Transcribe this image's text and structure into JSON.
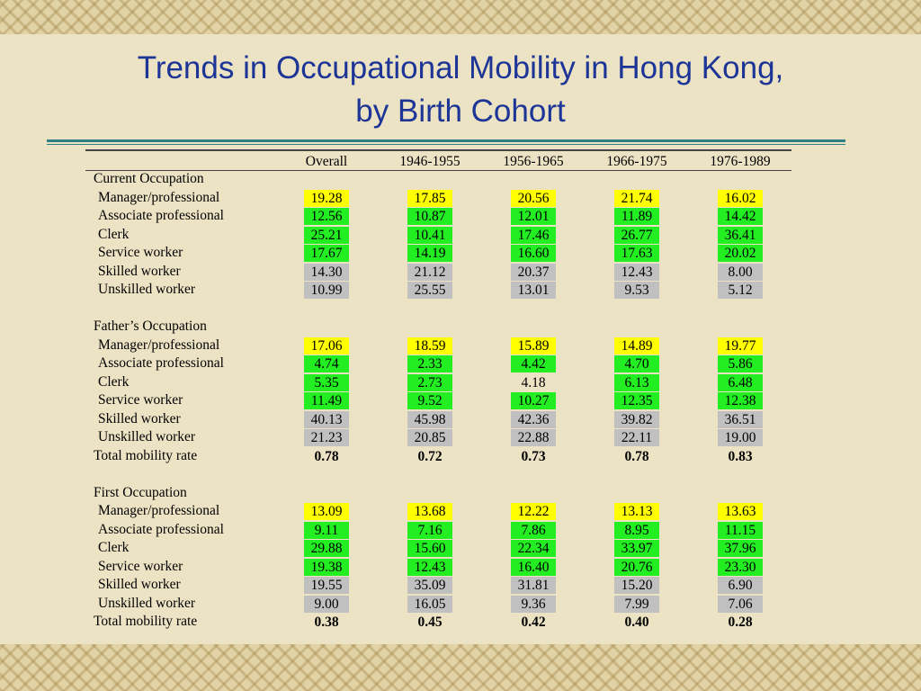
{
  "title": [
    "Trends in Occupational Mobility in Hong Kong,",
    "by Birth Cohort"
  ],
  "table": {
    "header": [
      "Overall",
      "1946-1955",
      "1956-1965",
      "1966-1975",
      "1976-1989"
    ],
    "sections": [
      {
        "title": "Current Occupation",
        "rows": [
          {
            "label": "Manager/professional",
            "values": [
              "19.28",
              "17.85",
              "20.56",
              "21.74",
              "16.02"
            ],
            "highlights": [
              "#ffff00",
              "#ffff00",
              "#ffff00",
              "#ffff00",
              "#ffff00"
            ]
          },
          {
            "label": "Associate professional",
            "values": [
              "12.56",
              "10.87",
              "12.01",
              "11.89",
              "14.42"
            ],
            "highlights": [
              "#22ee22",
              "#22ee22",
              "#22ee22",
              "#22ee22",
              "#22ee22"
            ]
          },
          {
            "label": "Clerk",
            "values": [
              "25.21",
              "10.41",
              "17.46",
              "26.77",
              "36.41"
            ],
            "highlights": [
              "#22ee22",
              "#22ee22",
              "#22ee22",
              "#22ee22",
              "#22ee22"
            ]
          },
          {
            "label": "Service worker",
            "values": [
              "17.67",
              "14.19",
              "16.60",
              "17.63",
              "20.02"
            ],
            "highlights": [
              "#22ee22",
              "#22ee22",
              "#22ee22",
              "#22ee22",
              "#22ee22"
            ]
          },
          {
            "label": "Skilled worker",
            "values": [
              "14.30",
              "21.12",
              "20.37",
              "12.43",
              "8.00"
            ],
            "highlights": [
              "#c0c0c0",
              "#c0c0c0",
              "#c0c0c0",
              "#c0c0c0",
              "#c0c0c0"
            ]
          },
          {
            "label": "Unskilled worker",
            "values": [
              "10.99",
              "25.55",
              "13.01",
              "9.53",
              "5.12"
            ],
            "highlights": [
              "#c0c0c0",
              "#c0c0c0",
              "#c0c0c0",
              "#c0c0c0",
              "#c0c0c0"
            ]
          }
        ]
      },
      {
        "title": "Father’s Occupation",
        "rows": [
          {
            "label": "Manager/professional",
            "values": [
              "17.06",
              "18.59",
              "15.89",
              "14.89",
              "19.77"
            ],
            "highlights": [
              "#ffff00",
              "#ffff00",
              "#ffff00",
              "#ffff00",
              "#ffff00"
            ]
          },
          {
            "label": "Associate professional",
            "values": [
              "4.74",
              "2.33",
              "4.42",
              "4.70",
              "5.86"
            ],
            "highlights": [
              "#22ee22",
              "#22ee22",
              "#22ee22",
              "#22ee22",
              "#22ee22"
            ]
          },
          {
            "label": "Clerk",
            "values": [
              "5.35",
              "2.73",
              "4.18",
              "6.13",
              "6.48"
            ],
            "highlights": [
              "#22ee22",
              "#22ee22",
              null,
              "#22ee22",
              "#22ee22"
            ]
          },
          {
            "label": "Service worker",
            "values": [
              "11.49",
              "9.52",
              "10.27",
              "12.35",
              "12.38"
            ],
            "highlights": [
              "#22ee22",
              "#22ee22",
              "#22ee22",
              "#22ee22",
              "#22ee22"
            ]
          },
          {
            "label": "Skilled worker",
            "values": [
              "40.13",
              "45.98",
              "42.36",
              "39.82",
              "36.51"
            ],
            "highlights": [
              "#c0c0c0",
              "#c0c0c0",
              "#c0c0c0",
              "#c0c0c0",
              "#c0c0c0"
            ]
          },
          {
            "label": "Unskilled worker",
            "values": [
              "21.23",
              "20.85",
              "22.88",
              "22.11",
              "19.00"
            ],
            "highlights": [
              "#c0c0c0",
              "#c0c0c0",
              "#c0c0c0",
              "#c0c0c0",
              "#c0c0c0"
            ]
          },
          {
            "label": "Total mobility rate",
            "values": [
              "0.78",
              "0.72",
              "0.73",
              "0.78",
              "0.83"
            ],
            "total": true
          }
        ]
      },
      {
        "title": "First Occupation",
        "rows": [
          {
            "label": "Manager/professional",
            "values": [
              "13.09",
              "13.68",
              "12.22",
              "13.13",
              "13.63"
            ],
            "highlights": [
              "#ffff00",
              "#ffff00",
              "#ffff00",
              "#ffff00",
              "#ffff00"
            ]
          },
          {
            "label": "Associate professional",
            "values": [
              "9.11",
              "7.16",
              "7.86",
              "8.95",
              "11.15"
            ],
            "highlights": [
              "#22ee22",
              "#22ee22",
              "#22ee22",
              "#22ee22",
              "#22ee22"
            ]
          },
          {
            "label": "Clerk",
            "values": [
              "29.88",
              "15.60",
              "22.34",
              "33.97",
              "37.96"
            ],
            "highlights": [
              "#22ee22",
              "#22ee22",
              "#22ee22",
              "#22ee22",
              "#22ee22"
            ]
          },
          {
            "label": "Service worker",
            "values": [
              "19.38",
              "12.43",
              "16.40",
              "20.76",
              "23.30"
            ],
            "highlights": [
              "#22ee22",
              "#22ee22",
              "#22ee22",
              "#22ee22",
              "#22ee22"
            ]
          },
          {
            "label": "Skilled worker",
            "values": [
              "19.55",
              "35.09",
              "31.81",
              "15.20",
              "6.90"
            ],
            "highlights": [
              "#c0c0c0",
              "#c0c0c0",
              "#c0c0c0",
              "#c0c0c0",
              "#c0c0c0"
            ]
          },
          {
            "label": "Unskilled worker",
            "values": [
              "9.00",
              "16.05",
              "9.36",
              "7.99",
              "7.06"
            ],
            "highlights": [
              "#c0c0c0",
              "#c0c0c0",
              "#c0c0c0",
              "#c0c0c0",
              "#c0c0c0"
            ]
          },
          {
            "label": "Total mobility rate",
            "values": [
              "0.38",
              "0.45",
              "0.42",
              "0.40",
              "0.28"
            ],
            "total": true
          }
        ]
      }
    ]
  }
}
